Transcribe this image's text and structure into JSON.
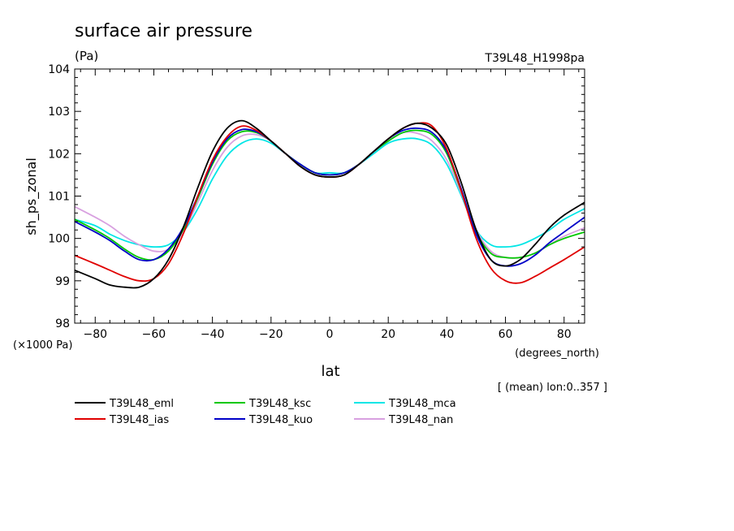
{
  "chart_data": {
    "type": "line",
    "title": "surface air pressure",
    "units": "(Pa)",
    "run_label": "T39L48_H1998pa",
    "ylabel": "sh_ps_zonal",
    "xlabel": "lat",
    "xunits": "(degrees_north)",
    "yscale_label": "(×1000 Pa)",
    "averaging_note": "[ (mean) lon:0..357 ]",
    "xlim": [
      -87,
      87
    ],
    "ylim": [
      98,
      104
    ],
    "xticks": [
      -80,
      -60,
      -40,
      -20,
      0,
      20,
      40,
      60,
      80
    ],
    "xtick_labels": [
      "−80",
      "−60",
      "−40",
      "−20",
      "0",
      "20",
      "40",
      "60",
      "80"
    ],
    "yticks": [
      98,
      99,
      100,
      101,
      102,
      103,
      104
    ],
    "ytick_labels": [
      "98",
      "99",
      "100",
      "101",
      "102",
      "103",
      "104"
    ],
    "x": [
      -87,
      -80,
      -75,
      -70,
      -65,
      -60,
      -55,
      -50,
      -45,
      -40,
      -35,
      -30,
      -25,
      -20,
      -15,
      -10,
      -5,
      0,
      5,
      10,
      15,
      20,
      25,
      30,
      35,
      40,
      45,
      50,
      55,
      60,
      65,
      70,
      75,
      80,
      87
    ],
    "series": [
      {
        "name": "T39L48_eml",
        "color": "#000000",
        "values": [
          99.25,
          99.05,
          98.9,
          98.85,
          98.85,
          99.05,
          99.5,
          100.25,
          101.2,
          102.05,
          102.6,
          102.78,
          102.6,
          102.3,
          102.0,
          101.7,
          101.5,
          101.45,
          101.5,
          101.75,
          102.05,
          102.35,
          102.6,
          102.72,
          102.6,
          102.2,
          101.3,
          100.2,
          99.5,
          99.35,
          99.5,
          99.85,
          100.25,
          100.55,
          100.85
        ]
      },
      {
        "name": "T39L48_ias",
        "color": "#e00000",
        "values": [
          99.6,
          99.4,
          99.25,
          99.1,
          99.0,
          99.05,
          99.4,
          100.1,
          101.0,
          101.85,
          102.4,
          102.65,
          102.55,
          102.3,
          102.0,
          101.7,
          101.5,
          101.45,
          101.5,
          101.75,
          102.05,
          102.35,
          102.6,
          102.72,
          102.65,
          102.1,
          101.1,
          100.0,
          99.3,
          99.0,
          98.95,
          99.1,
          99.3,
          99.5,
          99.8
        ]
      },
      {
        "name": "T39L48_ksc",
        "color": "#00c800",
        "values": [
          100.45,
          100.2,
          100.0,
          99.75,
          99.55,
          99.5,
          99.7,
          100.2,
          100.95,
          101.75,
          102.3,
          102.52,
          102.5,
          102.3,
          102.0,
          101.75,
          101.55,
          101.5,
          101.55,
          101.75,
          102.05,
          102.3,
          102.5,
          102.55,
          102.45,
          102.0,
          101.1,
          100.15,
          99.65,
          99.55,
          99.55,
          99.65,
          99.85,
          100.0,
          100.15
        ]
      },
      {
        "name": "T39L48_kuo",
        "color": "#0000c8",
        "values": [
          100.4,
          100.15,
          99.95,
          99.7,
          99.5,
          99.5,
          99.75,
          100.25,
          101.0,
          101.8,
          102.35,
          102.57,
          102.52,
          102.3,
          102.0,
          101.75,
          101.55,
          101.5,
          101.55,
          101.75,
          102.05,
          102.35,
          102.55,
          102.6,
          102.5,
          102.05,
          101.15,
          100.1,
          99.5,
          99.35,
          99.4,
          99.6,
          99.9,
          100.15,
          100.5
        ]
      },
      {
        "name": "T39L48_mca",
        "color": "#00e6e6",
        "values": [
          100.45,
          100.3,
          100.1,
          99.95,
          99.85,
          99.8,
          99.85,
          100.15,
          100.7,
          101.4,
          101.95,
          102.25,
          102.35,
          102.25,
          102.0,
          101.75,
          101.55,
          101.55,
          101.55,
          101.75,
          102.0,
          102.25,
          102.35,
          102.35,
          102.2,
          101.75,
          101.0,
          100.2,
          99.85,
          99.8,
          99.85,
          100.0,
          100.2,
          100.45,
          100.7
        ]
      },
      {
        "name": "T39L48_nan",
        "color": "#d8a0e0",
        "values": [
          100.75,
          100.5,
          100.3,
          100.05,
          99.85,
          99.7,
          99.75,
          100.15,
          100.85,
          101.6,
          102.15,
          102.42,
          102.45,
          102.3,
          102.0,
          101.75,
          101.55,
          101.5,
          101.55,
          101.75,
          102.05,
          102.3,
          102.5,
          102.48,
          102.3,
          101.85,
          101.05,
          100.2,
          99.7,
          99.55,
          99.55,
          99.65,
          99.85,
          100.05,
          100.25
        ]
      }
    ]
  }
}
